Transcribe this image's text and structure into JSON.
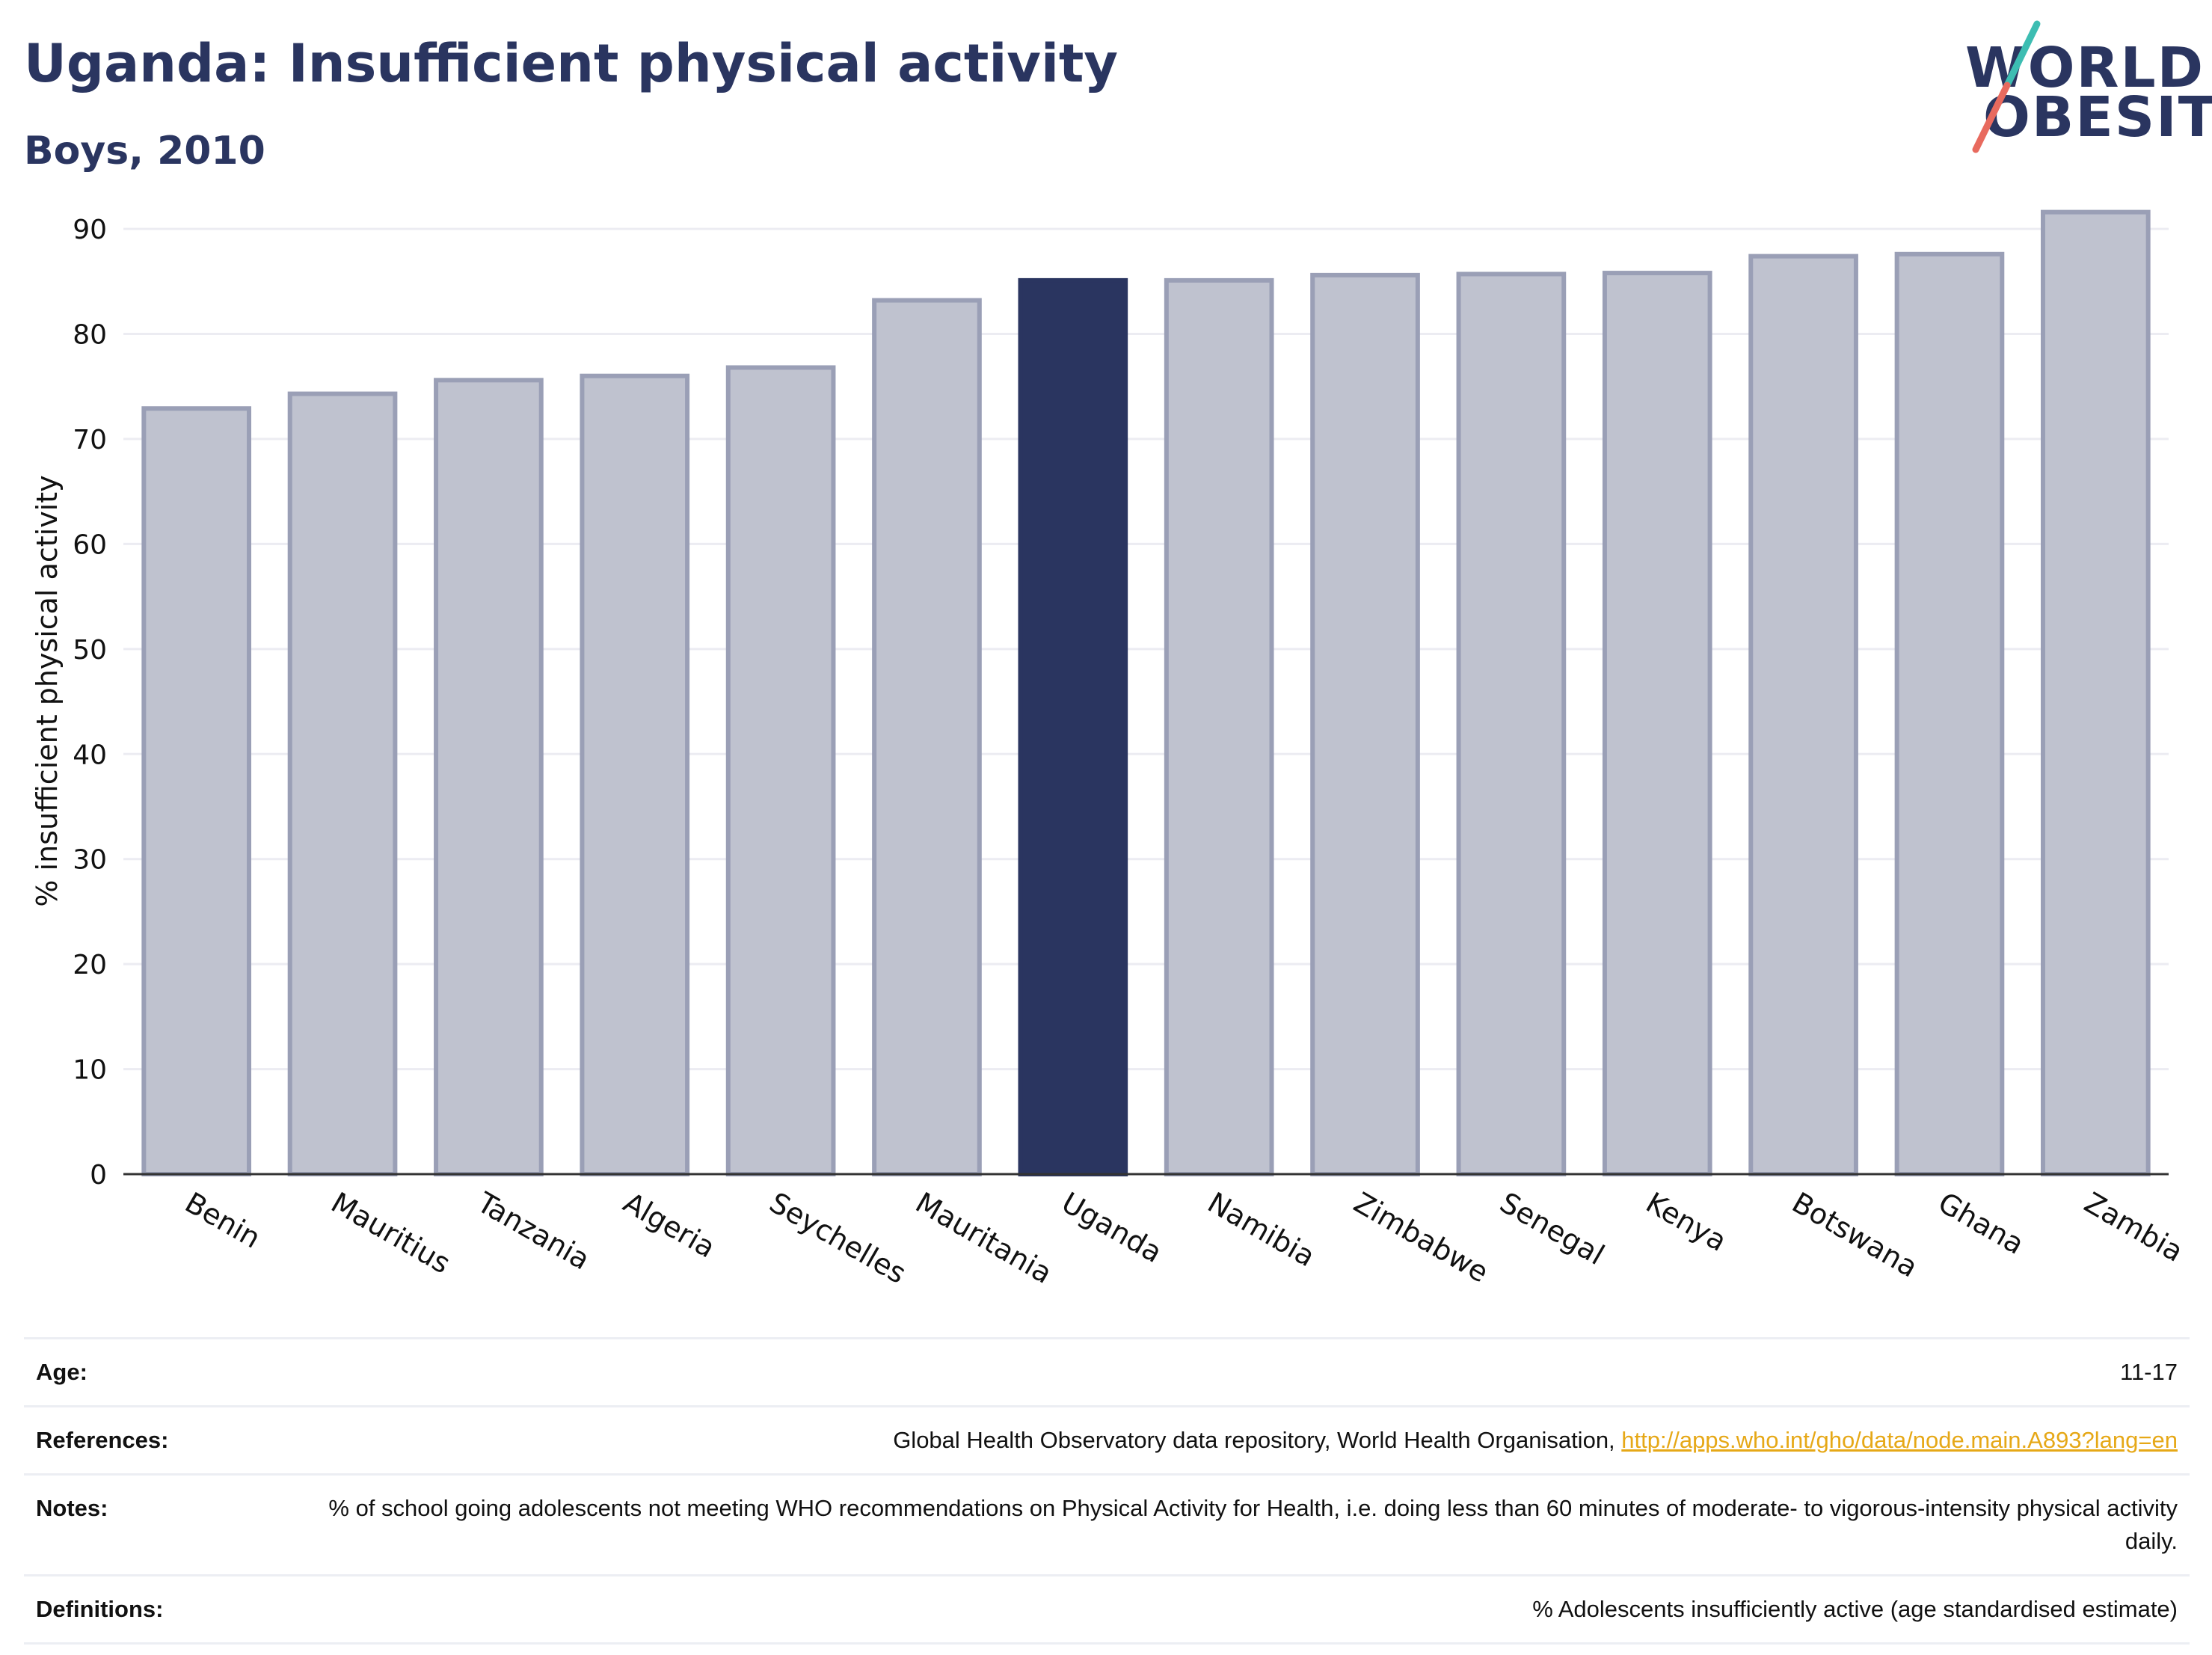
{
  "header": {
    "title": "Uganda: Insufficient physical activity",
    "subtitle": "Boys, 2010",
    "logo_line1": "WORLD",
    "logo_line2": "OBESITY"
  },
  "colors": {
    "navy": "#2a3560",
    "bar_fill": "#bfc2cf",
    "bar_stroke": "#9a9fb6",
    "logo_teal": "#3dbdb2",
    "logo_coral": "#e86a5e",
    "link": "#e6a817"
  },
  "chart_data": {
    "type": "bar",
    "title": "Uganda: Insufficient physical activity",
    "subtitle": "Boys, 2010",
    "ylabel": "% insufficient physical activity",
    "xlabel": "",
    "ylim": [
      0,
      92
    ],
    "yticks": [
      0,
      10,
      20,
      30,
      40,
      50,
      60,
      70,
      80,
      90
    ],
    "grid": true,
    "highlight": "Uganda",
    "categories": [
      "Benin",
      "Mauritius",
      "Tanzania",
      "Algeria",
      "Seychelles",
      "Mauritania",
      "Uganda",
      "Namibia",
      "Zimbabwe",
      "Senegal",
      "Kenya",
      "Botswana",
      "Ghana",
      "Zambia"
    ],
    "values": [
      72.9,
      74.3,
      75.6,
      76.0,
      76.8,
      83.2,
      85.1,
      85.1,
      85.6,
      85.7,
      85.8,
      87.4,
      87.6,
      91.6
    ]
  },
  "meta": [
    {
      "label": "Age:",
      "value": "11-17"
    },
    {
      "label": "References:",
      "value": "Global Health Observatory data repository, World Health Organisation, ",
      "link": "http://apps.who.int/gho/data/node.main.A893?lang=en"
    },
    {
      "label": "Notes:",
      "value": "% of school going adolescents not meeting WHO recommendations on Physical Activity for Health, i.e. doing less than 60 minutes of moderate- to vigorous-intensity physical activity daily."
    },
    {
      "label": "Definitions:",
      "value": "% Adolescents insufficiently active (age standardised estimate)"
    }
  ]
}
